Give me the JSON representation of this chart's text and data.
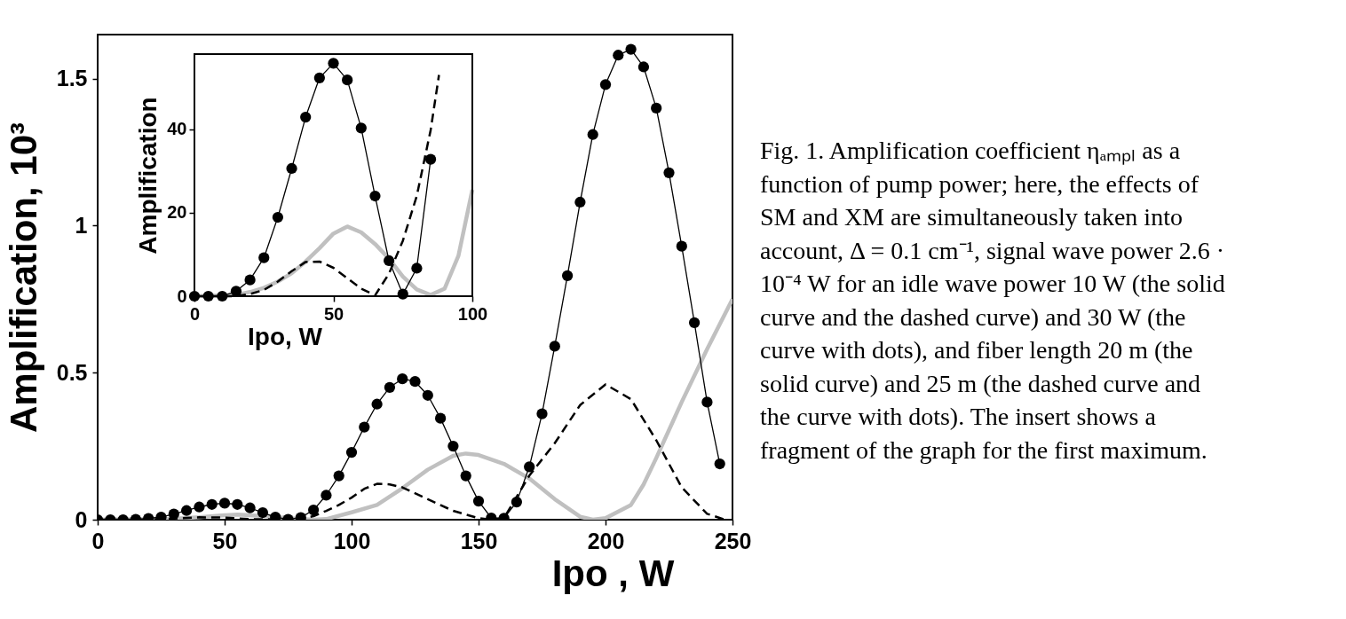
{
  "chart_data": [
    {
      "type": "line",
      "xlabel": "Ipo , W",
      "ylabel": "Amplification,  10³",
      "xlim": [
        0,
        250
      ],
      "ylim": [
        0,
        1.65
      ],
      "xticks": [
        0,
        50,
        100,
        150,
        200,
        250
      ],
      "yticks": [
        0,
        0.5,
        1,
        1.5
      ],
      "annotations": [
        "Fig. 1.  Amplification coefficient ηₐₘₚₗ as a function of pump power; here, the effects of SM and XM are simultaneously taken into account, Δ = 0.1 cm⁻¹, signal wave power 2.6 · 10⁻⁴ W for an idle wave power 10 W (the solid curve and the dashed curve) and 30 W (the curve with dots), and fiber length 20 m (the solid curve) and 25 m (the dashed curve and the curve with dots). The insert shows a fragment of the graph for the first maximum."
      ],
      "series": [
        {
          "color": "#c0c0c0",
          "line_style": "solid",
          "marker": "none",
          "x": [
            0,
            30,
            40,
            50,
            55,
            60,
            70,
            80,
            85,
            90,
            100,
            110,
            120,
            130,
            140,
            145,
            150,
            160,
            170,
            180,
            190,
            195,
            200,
            210,
            215,
            220,
            230,
            240,
            250
          ],
          "values": [
            0,
            0.003,
            0.008,
            0.015,
            0.017,
            0.015,
            0.009,
            0.002,
            0,
            0.002,
            0.025,
            0.05,
            0.107,
            0.17,
            0.217,
            0.225,
            0.22,
            0.19,
            0.14,
            0.07,
            0.01,
            0,
            0.005,
            0.05,
            0.12,
            0.21,
            0.4,
            0.58,
            0.75
          ]
        },
        {
          "color": "#000000",
          "line_style": "dashed",
          "marker": "none",
          "x": [
            0,
            20,
            40,
            50,
            60,
            70,
            80,
            85,
            90,
            95,
            100,
            105,
            110,
            115,
            120,
            130,
            140,
            150,
            155,
            160,
            170,
            180,
            190,
            200,
            210,
            220,
            230,
            240,
            247
          ],
          "values": [
            0,
            0,
            0.008,
            0.007,
            0.002,
            0.001,
            0.004,
            0.012,
            0.03,
            0.05,
            0.075,
            0.105,
            0.122,
            0.12,
            0.11,
            0.07,
            0.03,
            0.005,
            0,
            0.005,
            0.15,
            0.26,
            0.39,
            0.46,
            0.41,
            0.27,
            0.11,
            0.02,
            0
          ]
        },
        {
          "color": "#000000",
          "line_style": "solid",
          "marker": "circle",
          "x": [
            0,
            5,
            10,
            15,
            20,
            25,
            30,
            35,
            40,
            45,
            50,
            55,
            60,
            65,
            70,
            75,
            80,
            85,
            90,
            95,
            100,
            105,
            110,
            115,
            120,
            125,
            130,
            135,
            140,
            145,
            150,
            155,
            160,
            165,
            170,
            175,
            180,
            185,
            190,
            195,
            200,
            205,
            210,
            215,
            220,
            225,
            230,
            235,
            240,
            245
          ],
          "values": [
            0,
            0,
            0,
            0.001,
            0.004,
            0.009,
            0.019,
            0.031,
            0.043,
            0.052,
            0.056,
            0.052,
            0.04,
            0.024,
            0.009,
            0.001,
            0.007,
            0.033,
            0.083,
            0.149,
            0.229,
            0.315,
            0.393,
            0.45,
            0.479,
            0.47,
            0.423,
            0.345,
            0.25,
            0.149,
            0.063,
            0.006,
            0.005,
            0.06,
            0.18,
            0.36,
            0.59,
            0.83,
            1.08,
            1.31,
            1.48,
            1.58,
            1.6,
            1.54,
            1.4,
            1.18,
            0.93,
            0.67,
            0.4,
            0.19
          ]
        }
      ]
    },
    {
      "type": "line",
      "xlabel": "Ipo, W",
      "ylabel": "Amplification",
      "xlim": [
        0,
        100
      ],
      "ylim": [
        0,
        58
      ],
      "xticks": [
        0,
        50,
        100
      ],
      "yticks": [
        0,
        20,
        40
      ],
      "series": [
        {
          "color": "#c0c0c0",
          "line_style": "solid",
          "marker": "none",
          "x": [
            0,
            15,
            20,
            25,
            30,
            35,
            40,
            45,
            50,
            55,
            60,
            65,
            70,
            75,
            80,
            85,
            90,
            95,
            100
          ],
          "values": [
            0,
            0.3,
            1,
            2,
            3.5,
            5.5,
            8.3,
            11.5,
            15,
            16.7,
            15.3,
            12.5,
            9,
            4.7,
            1.6,
            0.3,
            1.8,
            9.7,
            25.5
          ]
        },
        {
          "color": "#000000",
          "line_style": "dashed",
          "marker": "none",
          "x": [
            0,
            15,
            20,
            25,
            30,
            35,
            40,
            45,
            50,
            55,
            60,
            65,
            70,
            75,
            80,
            85,
            88
          ],
          "values": [
            0,
            0,
            0.5,
            1.5,
            3.5,
            6,
            8.2,
            8.3,
            6.8,
            4.3,
            1.8,
            0.2,
            5.4,
            13.3,
            24,
            39.8,
            53
          ]
        },
        {
          "color": "#000000",
          "line_style": "solid",
          "marker": "circle",
          "x": [
            0,
            5,
            10,
            15,
            20,
            25,
            30,
            35,
            40,
            45,
            50,
            55,
            60,
            65,
            70,
            75,
            80,
            85
          ],
          "values": [
            0,
            0,
            0,
            1.2,
            3.9,
            9.2,
            18.9,
            30.6,
            42.9,
            52.3,
            55.8,
            51.8,
            40.3,
            24,
            8.5,
            0.5,
            6.7,
            32.8
          ]
        }
      ]
    }
  ]
}
